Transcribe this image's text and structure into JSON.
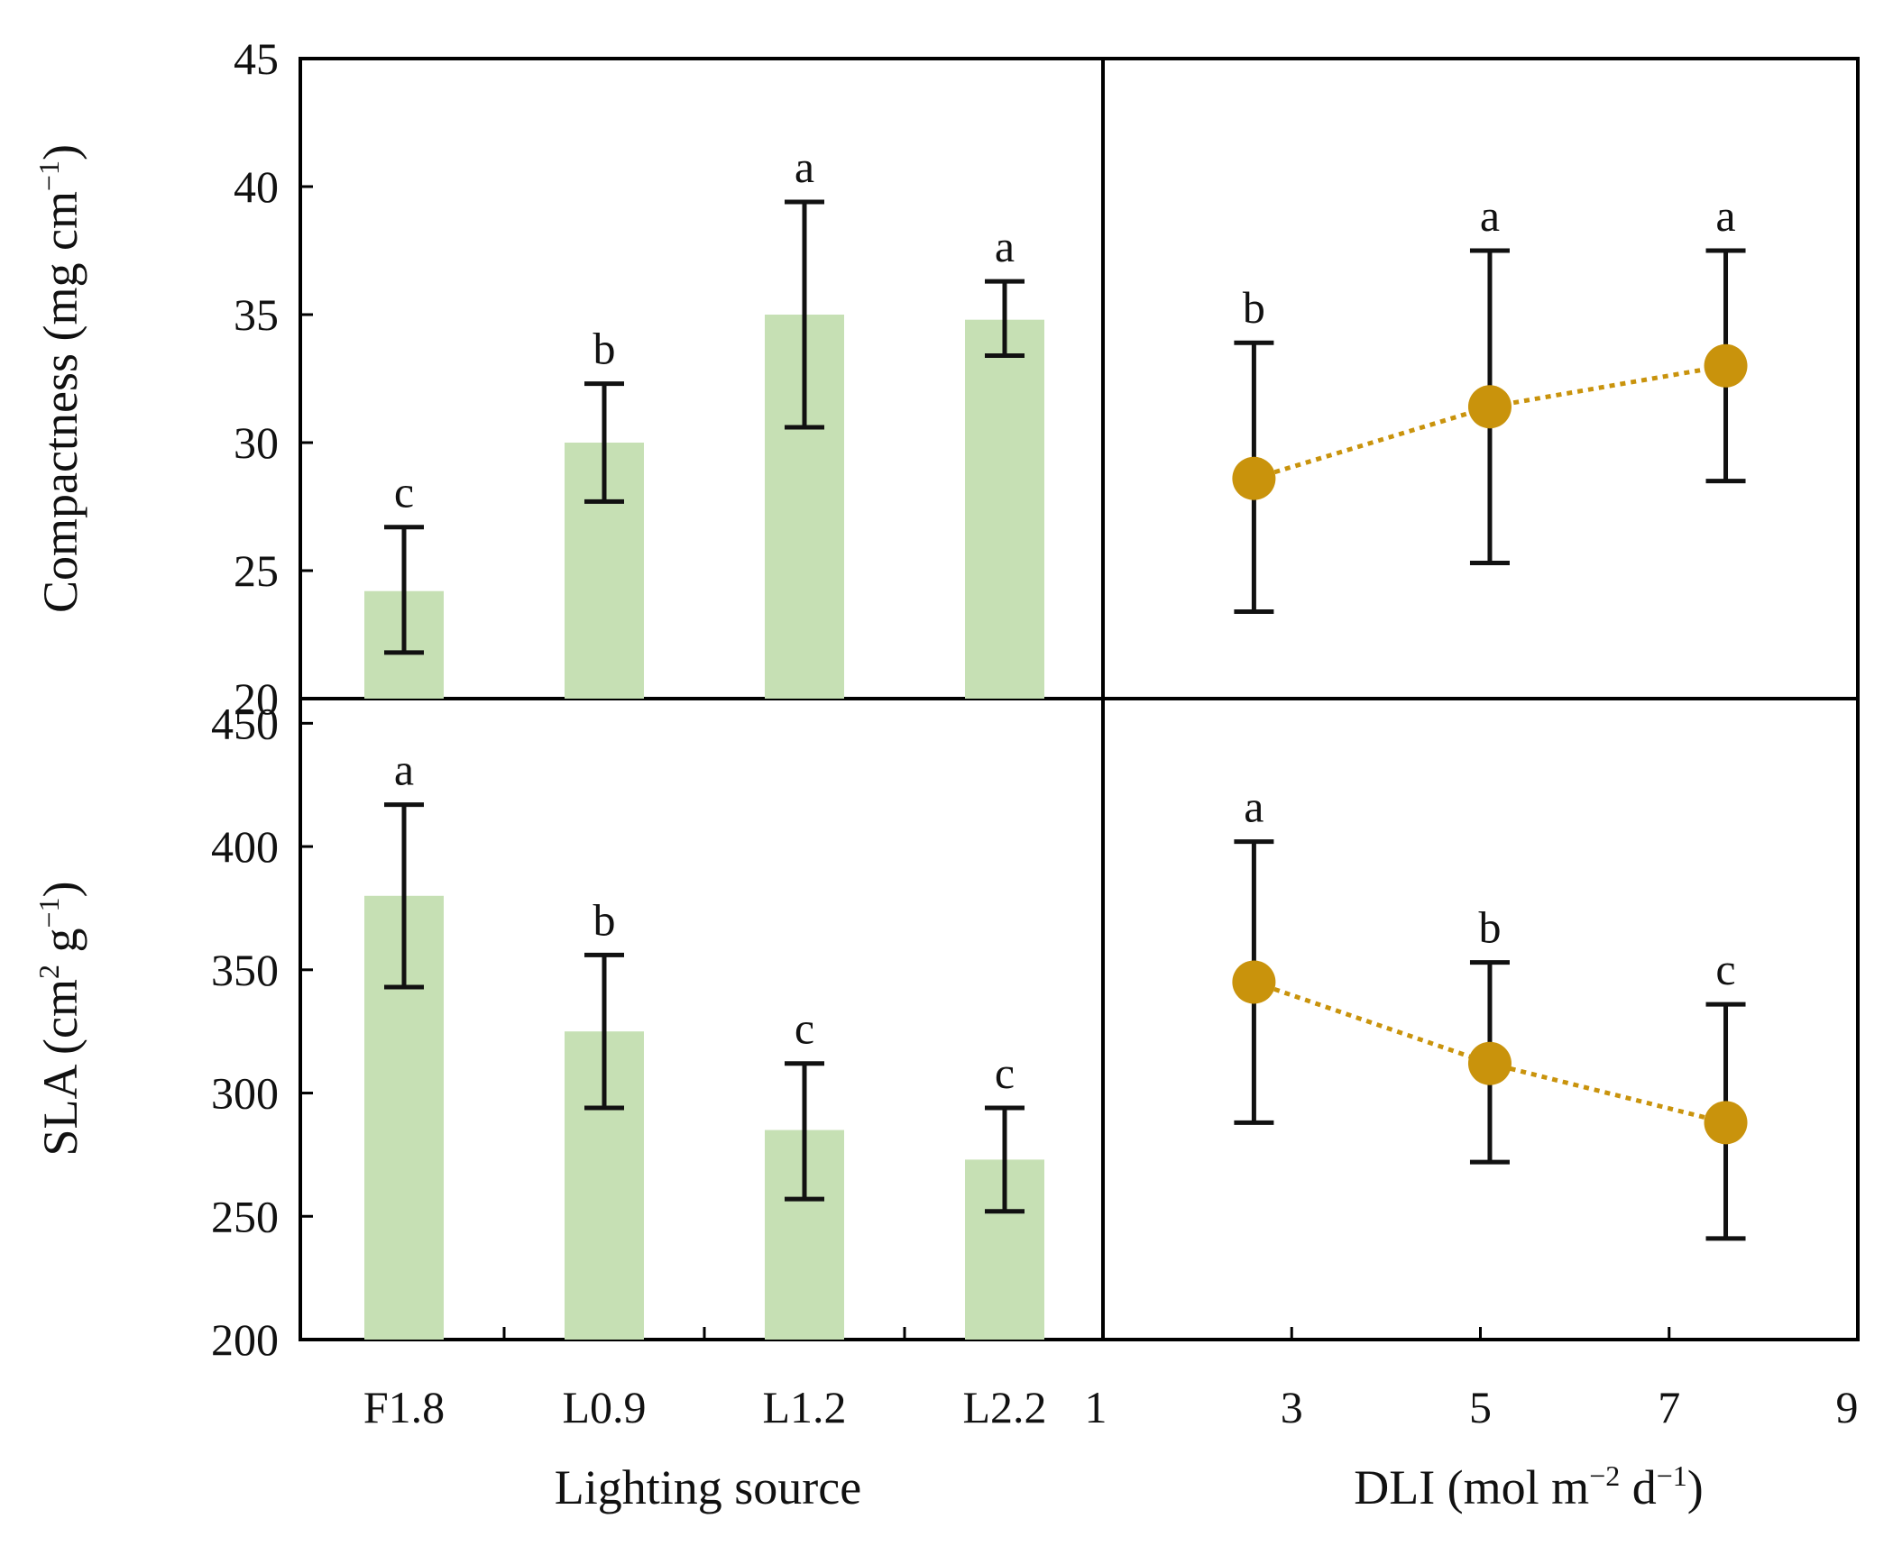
{
  "colors": {
    "bar": "#c6e0b4",
    "marker": "#c9930c",
    "axis": "#000000",
    "errorbar": "#111111"
  },
  "chart_data": [
    {
      "id": "compactness_by_source",
      "type": "bar",
      "ylabel_main": "Compactness (mg cm",
      "ylabel_sup": "−1",
      "ylabel_close": ")",
      "ylim": [
        20,
        45
      ],
      "yticks": [
        "20",
        "25",
        "30",
        "35",
        "40",
        "45"
      ],
      "categories": [
        "F1.8",
        "L0.9",
        "L1.2",
        "L2.2"
      ],
      "values": [
        24.2,
        30.0,
        35.0,
        34.8
      ],
      "err_low": [
        21.8,
        27.7,
        30.6,
        33.4
      ],
      "err_high": [
        26.7,
        32.3,
        39.4,
        36.3
      ],
      "letters": [
        "c",
        "b",
        "a",
        "a"
      ]
    },
    {
      "id": "compactness_by_dli",
      "type": "scatter",
      "ylim": [
        20,
        45
      ],
      "xlim": [
        1,
        9
      ],
      "x": [
        2.6,
        5.1,
        7.6
      ],
      "values": [
        28.6,
        31.4,
        33.0
      ],
      "err_low": [
        23.4,
        25.3,
        28.5
      ],
      "err_high": [
        33.9,
        37.5,
        37.5
      ],
      "letters": [
        "b",
        "a",
        "a"
      ]
    },
    {
      "id": "sla_by_source",
      "type": "bar",
      "ylabel_main": "SLA (cm",
      "ylabel_sup1": "2",
      "ylabel_mid": " g",
      "ylabel_sup2": "−1",
      "ylabel_close": ")",
      "ylim": [
        200,
        460
      ],
      "yticks": [
        "200",
        "250",
        "300",
        "350",
        "400",
        "450"
      ],
      "categories": [
        "F1.8",
        "L0.9",
        "L1.2",
        "L2.2"
      ],
      "values": [
        380,
        325,
        285,
        273
      ],
      "err_low": [
        343,
        294,
        257,
        252
      ],
      "err_high": [
        417,
        356,
        312,
        294
      ],
      "letters": [
        "a",
        "b",
        "c",
        "c"
      ],
      "xlabel": "Lighting source"
    },
    {
      "id": "sla_by_dli",
      "type": "scatter",
      "ylim": [
        200,
        460
      ],
      "xlim": [
        1,
        9
      ],
      "xticks": [
        "1",
        "3",
        "5",
        "7",
        "9"
      ],
      "x": [
        2.6,
        5.1,
        7.6
      ],
      "values": [
        345,
        312,
        288
      ],
      "err_low": [
        288,
        272,
        241
      ],
      "err_high": [
        402,
        353,
        336
      ],
      "letters": [
        "a",
        "b",
        "c"
      ],
      "xlabel_main": "DLI (mol m",
      "xlabel_sup1": "−2",
      "xlabel_mid": " d",
      "xlabel_sup2": "−1",
      "xlabel_close": ")"
    }
  ]
}
